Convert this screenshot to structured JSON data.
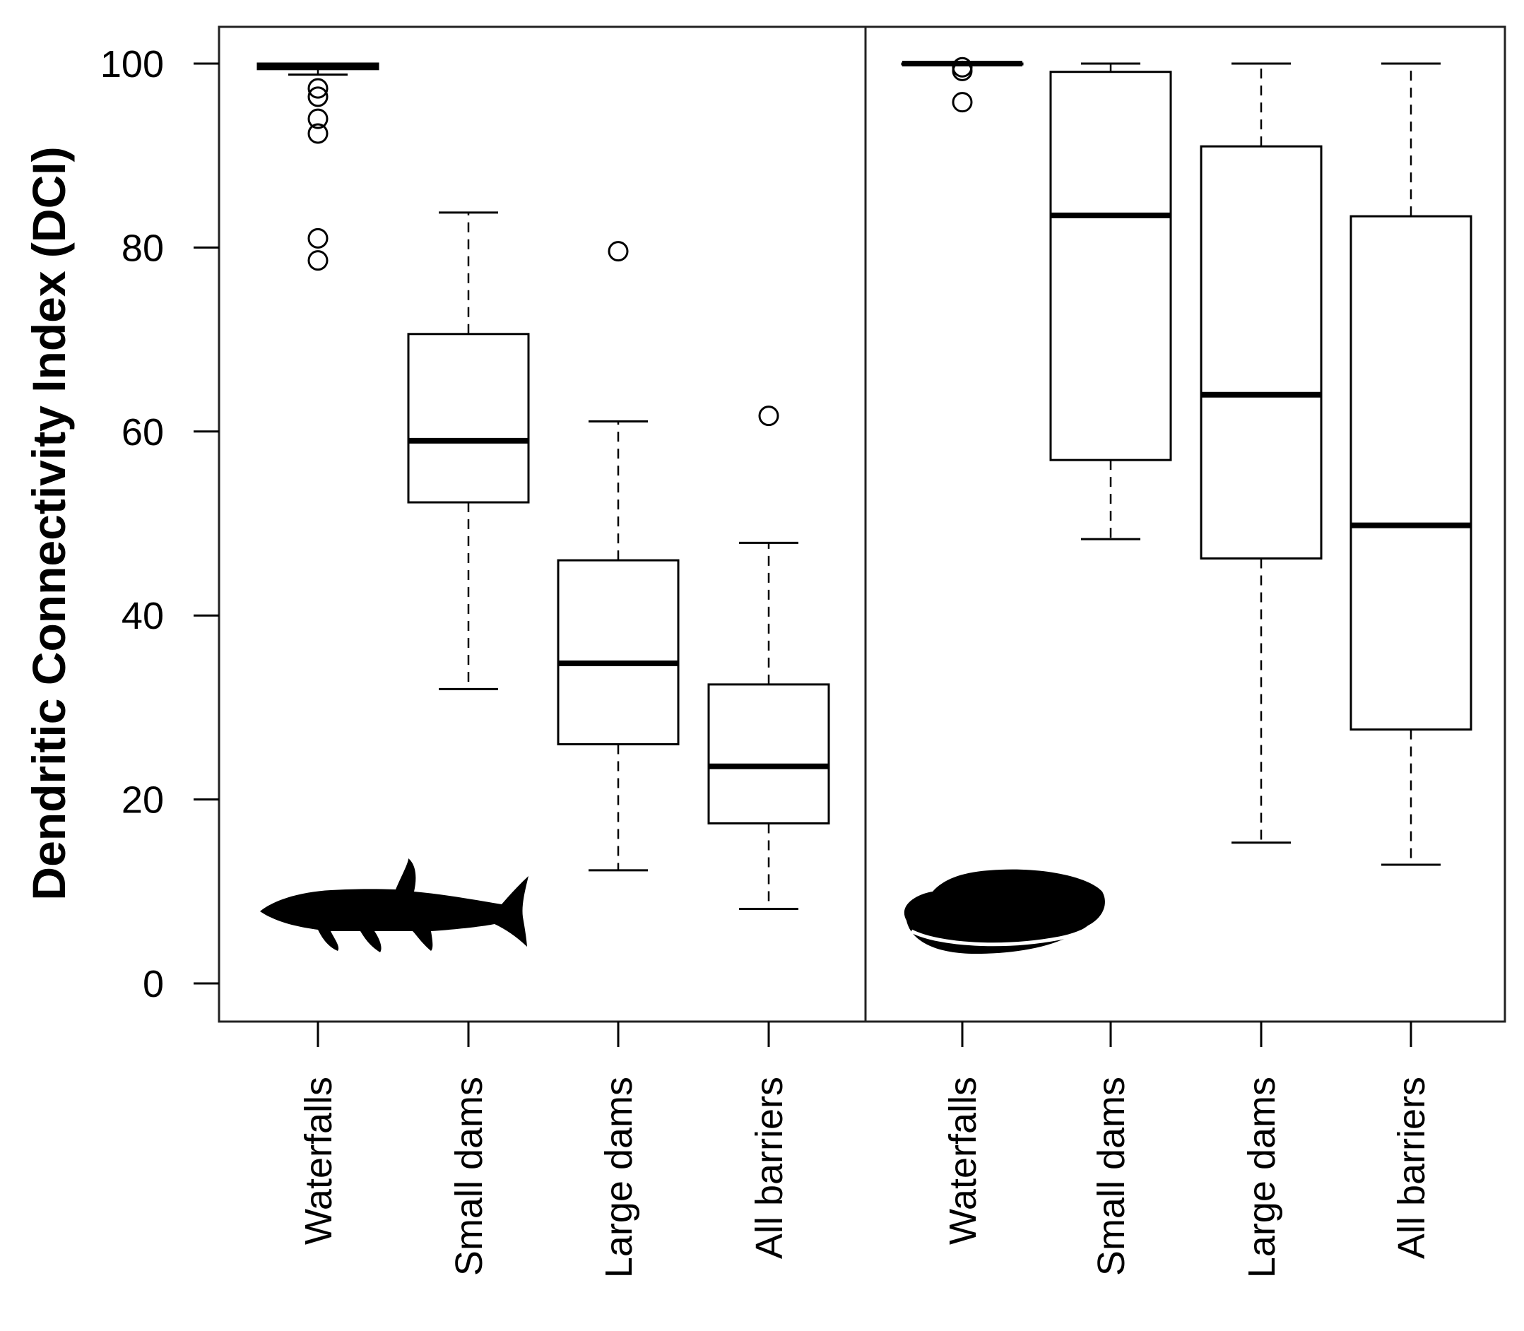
{
  "chart_data": {
    "type": "boxplot",
    "ylabel": "Dendritic Connectivity Index (DCI)",
    "ylim": [
      -4,
      104
    ],
    "yticks": [
      0,
      20,
      40,
      60,
      80,
      100
    ],
    "categories": [
      "Waterfalls",
      "Small dams",
      "Large dams",
      "All barriers"
    ],
    "panels": [
      {
        "name": "fish",
        "icon": "fish-silhouette-icon",
        "boxes": [
          {
            "category": "Waterfalls",
            "whisker_low": 98.8,
            "q1": 99.4,
            "median": 99.7,
            "q3": 100,
            "whisker_high": 100,
            "outliers": [
              97.3,
              96.4,
              94.0,
              92.4,
              81.0,
              78.6
            ]
          },
          {
            "category": "Small dams",
            "whisker_low": 32.0,
            "q1": 52.3,
            "median": 59.0,
            "q3": 70.6,
            "whisker_high": 83.8,
            "outliers": []
          },
          {
            "category": "Large dams",
            "whisker_low": 12.3,
            "q1": 26.0,
            "median": 34.8,
            "q3": 46.0,
            "whisker_high": 61.1,
            "outliers": [
              79.6
            ]
          },
          {
            "category": "All barriers",
            "whisker_low": 8.1,
            "q1": 17.4,
            "median": 23.6,
            "q3": 32.5,
            "whisker_high": 47.9,
            "outliers": [
              61.7
            ]
          }
        ]
      },
      {
        "name": "mussel",
        "icon": "mussel-silhouette-icon",
        "boxes": [
          {
            "category": "Waterfalls",
            "whisker_low": 100,
            "q1": 100,
            "median": 100,
            "q3": 100,
            "whisker_high": 100,
            "outliers": [
              99.6,
              99.2,
              95.8
            ]
          },
          {
            "category": "Small dams",
            "whisker_low": 48.3,
            "q1": 56.9,
            "median": 83.5,
            "q3": 99.1,
            "whisker_high": 100,
            "outliers": []
          },
          {
            "category": "Large dams",
            "whisker_low": 15.3,
            "q1": 46.2,
            "median": 64.0,
            "q3": 91.0,
            "whisker_high": 100,
            "outliers": []
          },
          {
            "category": "All barriers",
            "whisker_low": 12.9,
            "q1": 27.6,
            "median": 49.8,
            "q3": 83.4,
            "whisker_high": 100,
            "outliers": []
          }
        ]
      }
    ]
  }
}
